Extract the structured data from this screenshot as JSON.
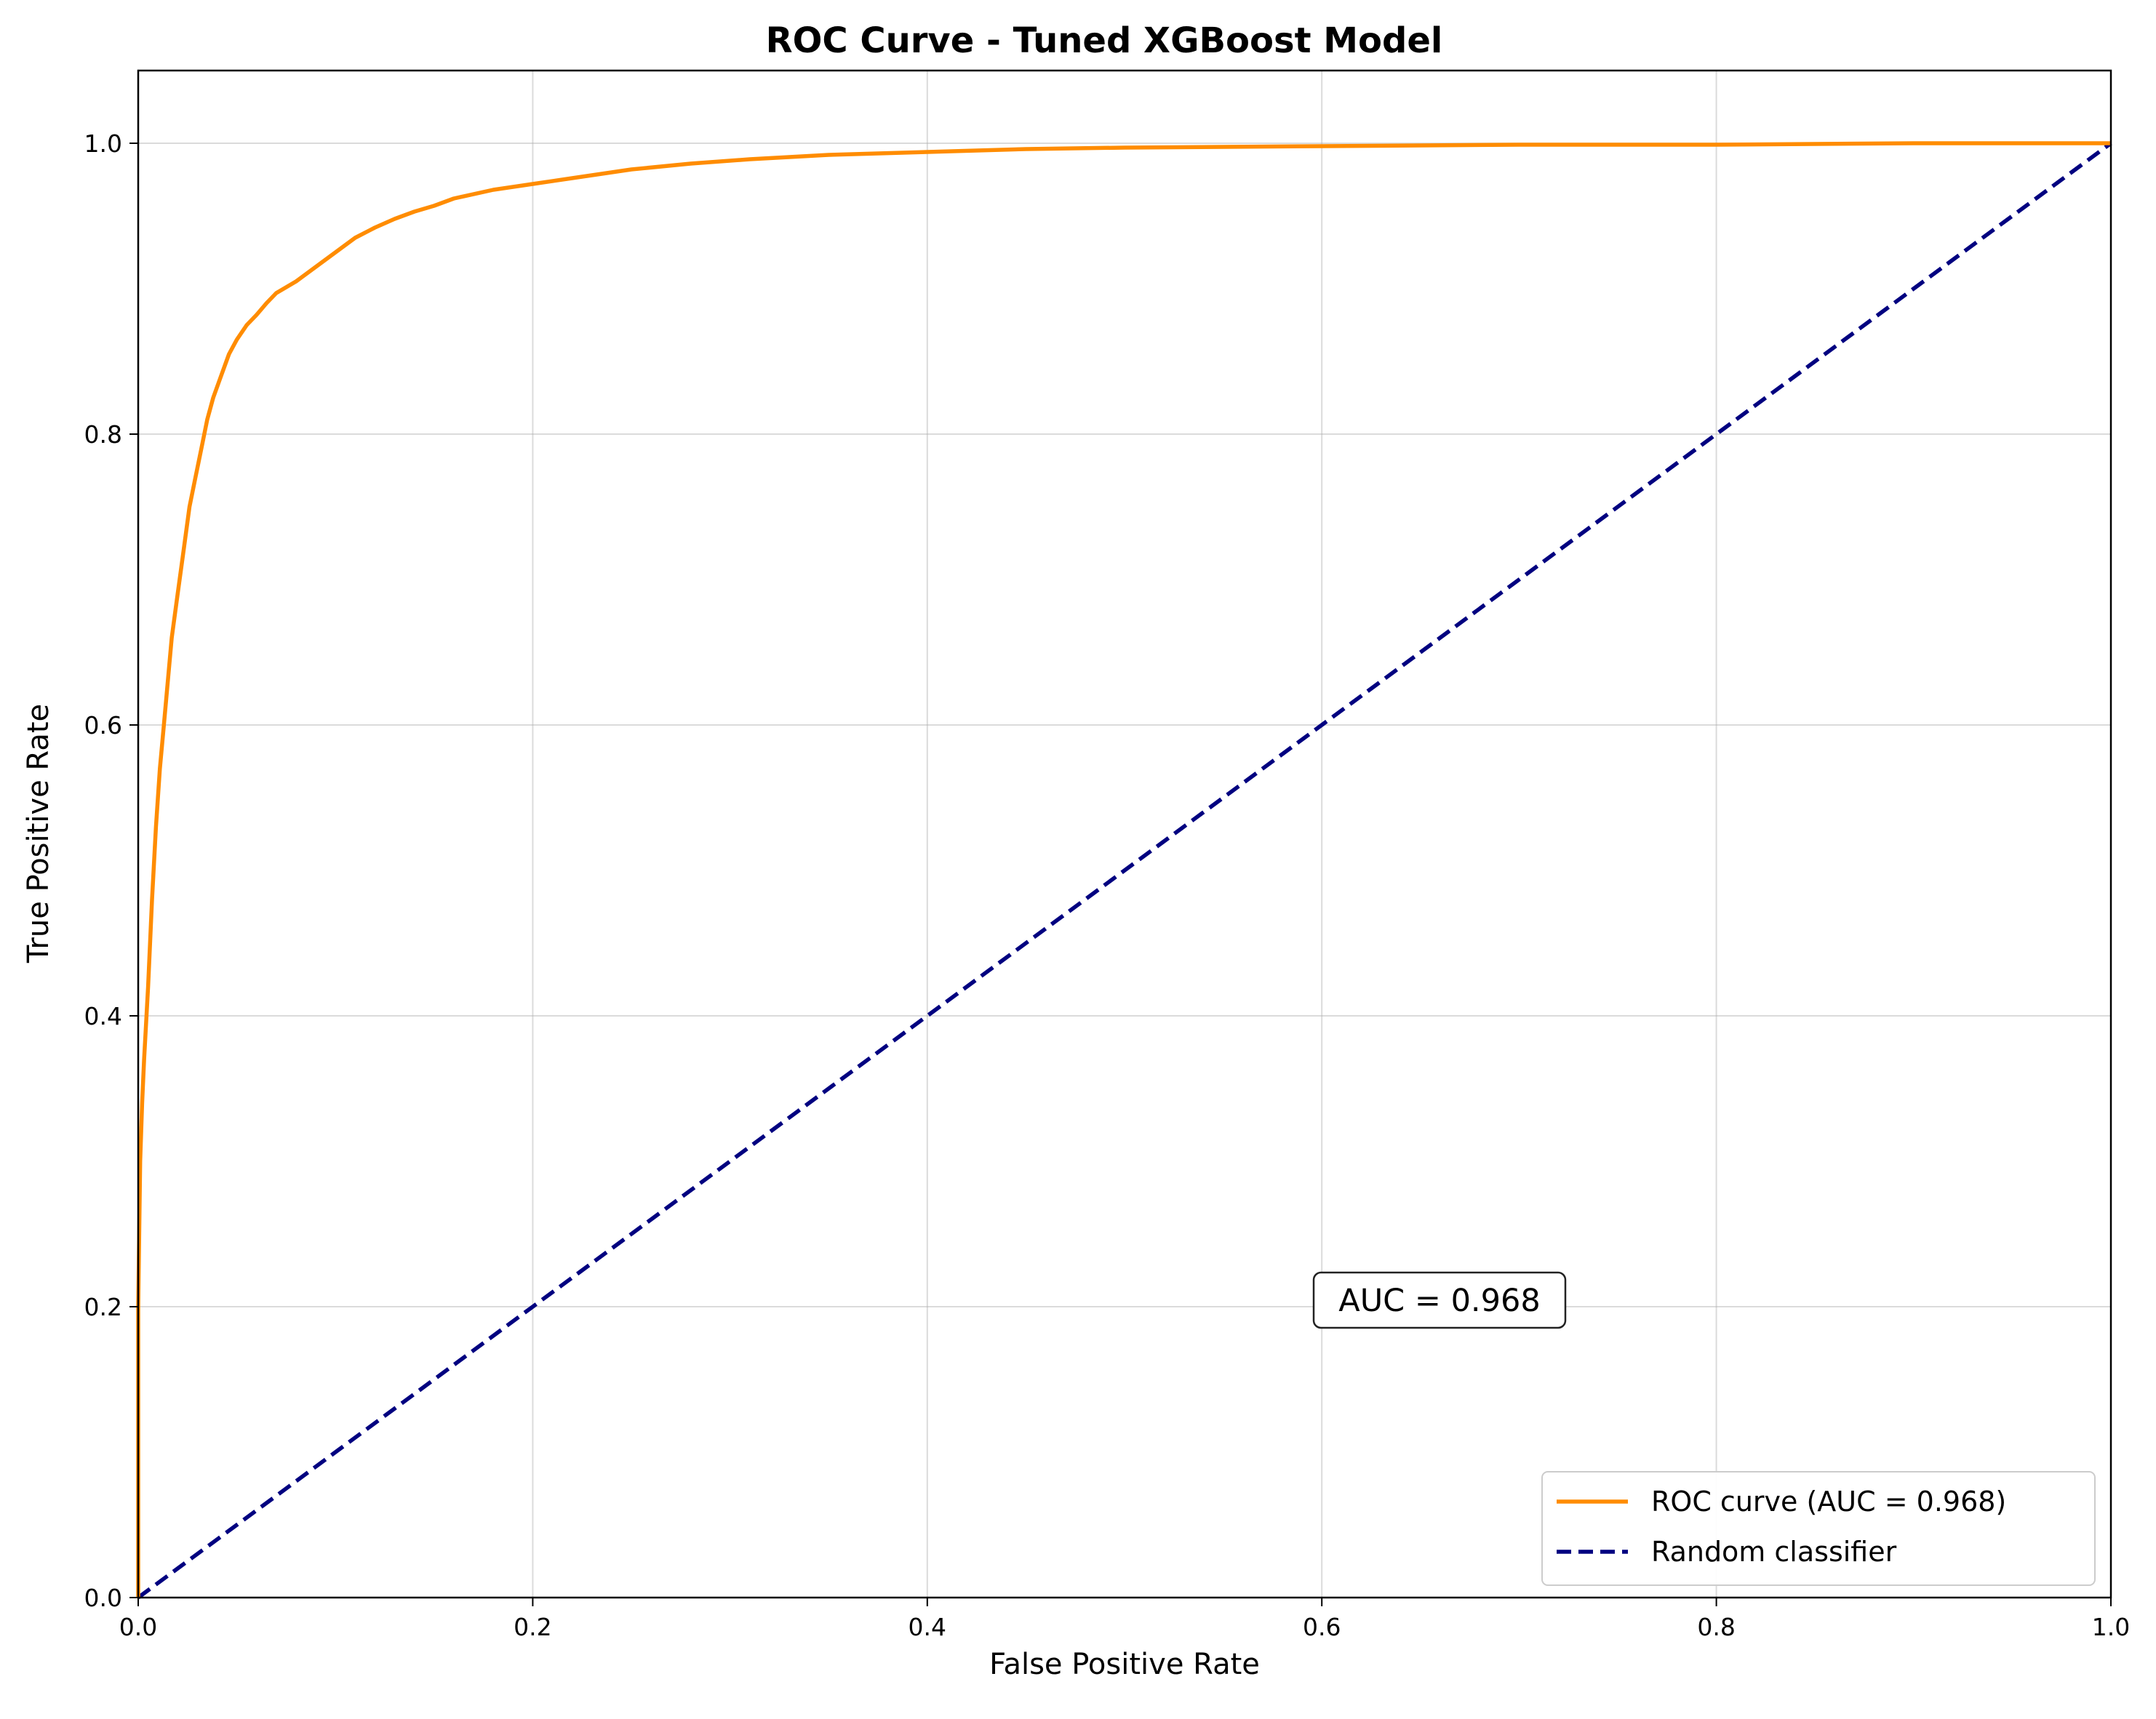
{
  "chart_data": {
    "type": "line",
    "title": "ROC Curve - Tuned XGBoost Model",
    "xlabel": "False Positive Rate",
    "ylabel": "True Positive Rate",
    "xlim": [
      0,
      1
    ],
    "ylim": [
      0,
      1.05
    ],
    "x_ticks": [
      "0.0",
      "0.2",
      "0.4",
      "0.6",
      "0.8",
      "1.0"
    ],
    "y_ticks": [
      "0.0",
      "0.2",
      "0.4",
      "0.6",
      "0.8",
      "1.0"
    ],
    "grid": true,
    "legend_position": "lower-right",
    "annotation": "AUC = 0.968",
    "series": [
      {
        "name": "ROC curve (AUC = 0.968)",
        "color": "#ff8c00",
        "style": "solid",
        "x": [
          0.0,
          0.0,
          0.001,
          0.002,
          0.003,
          0.005,
          0.007,
          0.009,
          0.011,
          0.013,
          0.015,
          0.017,
          0.02,
          0.023,
          0.026,
          0.029,
          0.032,
          0.035,
          0.038,
          0.042,
          0.046,
          0.05,
          0.055,
          0.06,
          0.065,
          0.07,
          0.08,
          0.09,
          0.1,
          0.11,
          0.12,
          0.13,
          0.14,
          0.15,
          0.16,
          0.18,
          0.2,
          0.22,
          0.25,
          0.28,
          0.31,
          0.35,
          0.4,
          0.45,
          0.5,
          0.6,
          0.7,
          0.8,
          0.9,
          1.0
        ],
        "y": [
          0.0,
          0.2,
          0.3,
          0.34,
          0.37,
          0.42,
          0.48,
          0.53,
          0.57,
          0.6,
          0.63,
          0.66,
          0.69,
          0.72,
          0.75,
          0.77,
          0.79,
          0.81,
          0.825,
          0.84,
          0.855,
          0.865,
          0.875,
          0.882,
          0.89,
          0.897,
          0.905,
          0.915,
          0.925,
          0.935,
          0.942,
          0.948,
          0.953,
          0.957,
          0.962,
          0.968,
          0.972,
          0.976,
          0.982,
          0.986,
          0.989,
          0.992,
          0.994,
          0.996,
          0.997,
          0.998,
          0.999,
          0.999,
          1.0,
          1.0
        ]
      },
      {
        "name": "Random classifier",
        "color": "#000080",
        "style": "dashed",
        "x": [
          0,
          1
        ],
        "y": [
          0,
          1
        ]
      }
    ]
  }
}
